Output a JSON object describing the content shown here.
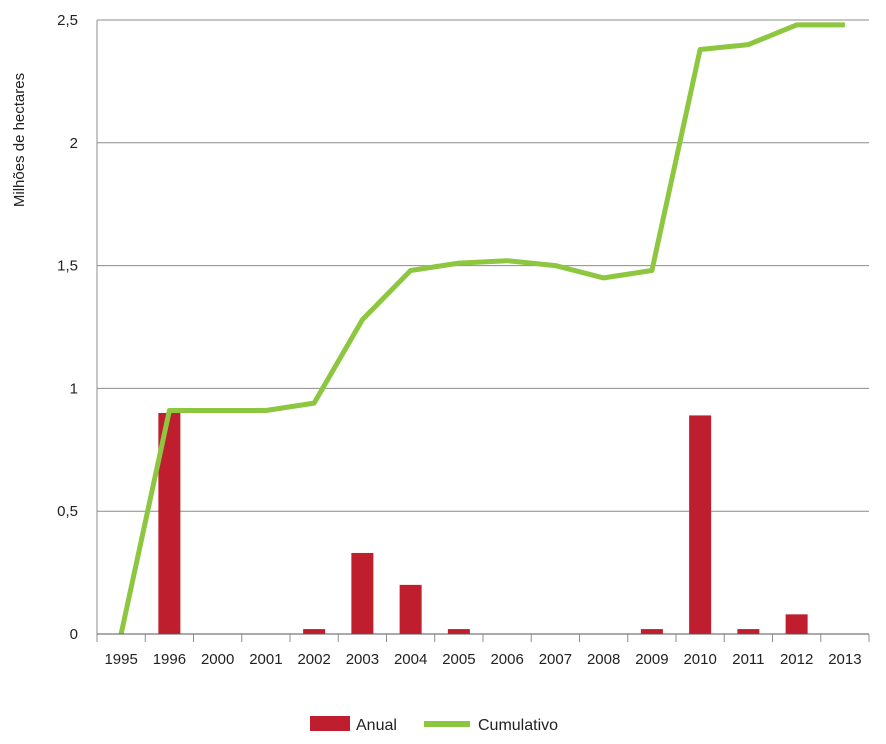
{
  "chart_data": {
    "type": "bar",
    "title": "",
    "xlabel": "",
    "ylabel": "Milhões de hectares",
    "categories": [
      "1995",
      "1996",
      "2000",
      "2001",
      "2002",
      "2003",
      "2004",
      "2005",
      "2006",
      "2007",
      "2008",
      "2009",
      "2010",
      "2011",
      "2012",
      "2013"
    ],
    "ylim": [
      0,
      2.5
    ],
    "yticks": [
      "0",
      "0,5",
      "1",
      "1,5",
      "2",
      "2,5"
    ],
    "ytick_values": [
      0,
      0.5,
      1,
      1.5,
      2,
      2.5
    ],
    "grid": "horizontal",
    "legend_position": "bottom",
    "series": [
      {
        "name": "Anual",
        "type": "bar",
        "color": "#be1e2d",
        "values": [
          0,
          0.9,
          0,
          0,
          0.02,
          0.33,
          0.2,
          0.02,
          0,
          0,
          0,
          0.02,
          0.89,
          0.02,
          0.08,
          0
        ]
      },
      {
        "name": "Cumulativo",
        "type": "line",
        "color": "#8dc63f",
        "values": [
          0,
          0.91,
          0.91,
          0.91,
          0.94,
          1.28,
          1.48,
          1.51,
          1.52,
          1.5,
          1.45,
          1.48,
          2.38,
          2.4,
          2.48,
          2.48
        ]
      }
    ]
  }
}
